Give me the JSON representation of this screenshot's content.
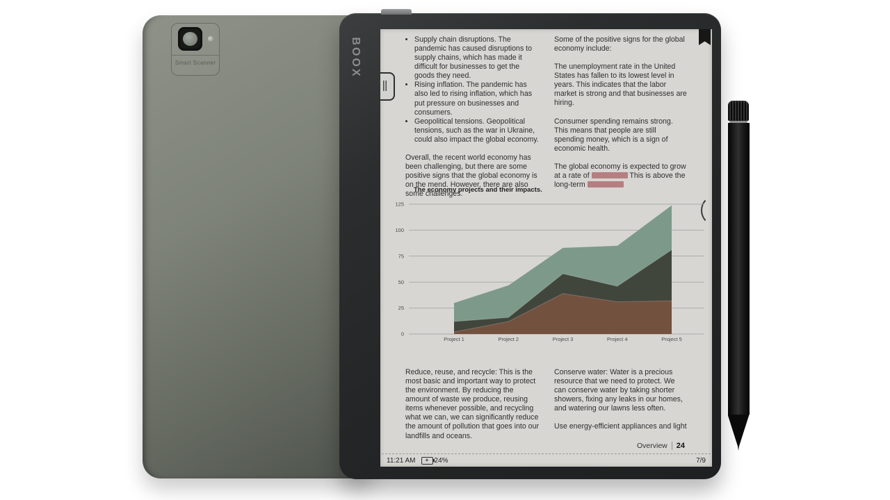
{
  "device": {
    "brand_logo": "BOOX",
    "back_camera_label": "Smart Scanner"
  },
  "chart_data": {
    "type": "area",
    "title": "The economy projects and their impacts.",
    "categories": [
      "Project 1",
      "Project 2",
      "Project 3",
      "Project 4",
      "Project 5"
    ],
    "series": [
      {
        "name": "green-area",
        "color": "#7d998a",
        "values": [
          30,
          47,
          83,
          85,
          124
        ]
      },
      {
        "name": "dark-area",
        "color": "#41463c",
        "values": [
          12,
          16,
          58,
          46,
          81
        ]
      },
      {
        "name": "brown-area",
        "color": "#73513f",
        "values": [
          2,
          12,
          39,
          31,
          32
        ]
      }
    ],
    "yticks": [
      0,
      25,
      50,
      75,
      100,
      125
    ],
    "ylim": [
      0,
      125
    ],
    "xlabel": "",
    "ylabel": "",
    "grid": true,
    "legend": "none"
  },
  "page": {
    "left_column": {
      "bullets": [
        "Supply chain disruptions. The pandemic has caused disruptions to supply chains, which has made it difficult for businesses to get the goods they need.",
        "Rising inflation. The pandemic has also led to rising inflation, which has put pressure on businesses and consumers.",
        "Geopolitical tensions. Geopolitical tensions, such as the war in Ukraine, could also impact the global economy."
      ],
      "paragraph": "Overall, the recent world economy has been challenging, but there are some positive signs that the global economy is on the mend. However, there are also some challenges."
    },
    "right_column": {
      "p1": "Some of the positive signs for the global economy include:",
      "p2": "The unemployment rate in the United States has fallen to its lowest level in years. This indicates that the labor market is strong and that businesses are hiring.",
      "p3": "Consumer spending remains strong. This means that people are still spending money, which is a sign of economic health.",
      "p4_part1": "The global economy is expected to grow at a rate of",
      "p4_part2": "This is above the long-term"
    },
    "bottom_left_paragraph": "Reduce, reuse, and recycle: This is the most basic and important way to protect the environment. By reducing the amount of waste we produce, reusing items whenever possible, and recycling what we can, we can significantly reduce the amount of pollution that goes into our landfills and oceans.",
    "bottom_right_paragraph": "Conserve water: Water is a precious resource that we need to protect. We can conserve water by taking shorter showers, fixing any leaks in our homes, and watering our lawns less often.",
    "bottom_right_paragraph2": "Use energy-efficient appliances and light",
    "footer": {
      "overview_label": "Overview",
      "overview_value": "24"
    },
    "status_bar": {
      "time": "11:21 AM",
      "battery": "24%",
      "page_indicator": "7/9"
    }
  },
  "colors": {
    "redaction": "#b57f81",
    "screen_bg": "#d7d6d3",
    "area_green": "#7d998a",
    "area_dark": "#41463c",
    "area_brown": "#73513f"
  }
}
